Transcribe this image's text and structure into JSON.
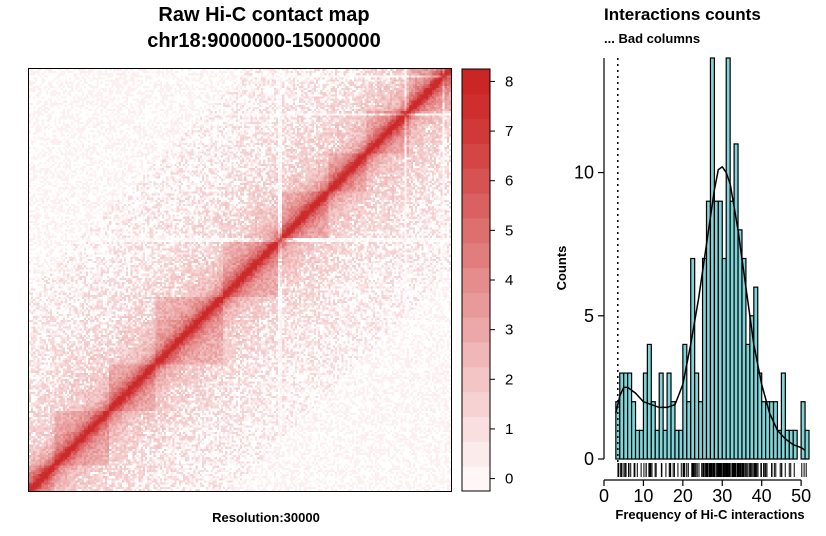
{
  "left_panel": {
    "title_line1": "Raw Hi-C contact map",
    "title_line2": "chr18:9000000-15000000",
    "resolution_label": "Resolution:30000"
  },
  "right_panel": {
    "title": "Interactions counts",
    "subtitle": "... Bad columns",
    "ylabel": "Counts",
    "xlabel": "Frequency of Hi-C interactions"
  },
  "colors": {
    "bar_fill": "#7fd4d8",
    "bar_stroke": "#000000",
    "scale_low": "#fdf0f0",
    "scale_high": "#cc2a2a"
  },
  "chart_data": [
    {
      "type": "heatmap",
      "title": "Raw Hi-C contact map",
      "subtitle": "chr18:9000000-15000000",
      "xlabel": "Resolution:30000",
      "bins": 200,
      "color_scale": {
        "ticks": [
          "0",
          "1",
          "2",
          "3",
          "4",
          "5",
          "6",
          "7",
          "8"
        ],
        "min": 0,
        "max": 8.5,
        "levels": 17,
        "colors": [
          "#fff7f7",
          "#fcebeb",
          "#f9dfdf",
          "#f6d2d2",
          "#f3c5c5",
          "#efb7b7",
          "#eca8a8",
          "#e89a9a",
          "#e58c8c",
          "#e17d7d",
          "#de6f6f",
          "#da6161",
          "#d75353",
          "#d44545",
          "#d13838",
          "#ce2e2e",
          "#cb2626"
        ]
      }
    },
    {
      "type": "bar",
      "title": "Interactions counts",
      "subtitle": "... Bad columns",
      "xlabel": "Frequency of Hi-C interactions",
      "ylabel": "Counts",
      "xlim": [
        0,
        52
      ],
      "ylim": [
        0,
        14
      ],
      "xticks": [
        "0",
        "10",
        "20",
        "30",
        "40",
        "50"
      ],
      "yticks": [
        "0",
        "5",
        "10"
      ],
      "bad_column_threshold": 3.5,
      "bins": [
        {
          "x": 3,
          "count": 2
        },
        {
          "x": 4,
          "count": 3
        },
        {
          "x": 5,
          "count": 3
        },
        {
          "x": 6,
          "count": 3
        },
        {
          "x": 7,
          "count": 2
        },
        {
          "x": 8,
          "count": 1
        },
        {
          "x": 9,
          "count": 1
        },
        {
          "x": 10,
          "count": 3
        },
        {
          "x": 11,
          "count": 4
        },
        {
          "x": 12,
          "count": 2
        },
        {
          "x": 13,
          "count": 1
        },
        {
          "x": 14,
          "count": 3
        },
        {
          "x": 15,
          "count": 1
        },
        {
          "x": 16,
          "count": 3
        },
        {
          "x": 17,
          "count": 2
        },
        {
          "x": 18,
          "count": 1
        },
        {
          "x": 19,
          "count": 1
        },
        {
          "x": 20,
          "count": 4
        },
        {
          "x": 21,
          "count": 2
        },
        {
          "x": 22,
          "count": 7
        },
        {
          "x": 23,
          "count": 3
        },
        {
          "x": 24,
          "count": 2
        },
        {
          "x": 25,
          "count": 7
        },
        {
          "x": 26,
          "count": 9
        },
        {
          "x": 27,
          "count": 14
        },
        {
          "x": 28,
          "count": 9
        },
        {
          "x": 29,
          "count": 9
        },
        {
          "x": 30,
          "count": 7
        },
        {
          "x": 31,
          "count": 14
        },
        {
          "x": 32,
          "count": 9
        },
        {
          "x": 33,
          "count": 11
        },
        {
          "x": 34,
          "count": 8
        },
        {
          "x": 35,
          "count": 7
        },
        {
          "x": 36,
          "count": 4
        },
        {
          "x": 37,
          "count": 5
        },
        {
          "x": 38,
          "count": 6
        },
        {
          "x": 39,
          "count": 3
        },
        {
          "x": 40,
          "count": 2
        },
        {
          "x": 41,
          "count": 2
        },
        {
          "x": 42,
          "count": 2
        },
        {
          "x": 43,
          "count": 2
        },
        {
          "x": 44,
          "count": 1
        },
        {
          "x": 45,
          "count": 3
        },
        {
          "x": 46,
          "count": 1
        },
        {
          "x": 47,
          "count": 1
        },
        {
          "x": 48,
          "count": 1
        },
        {
          "x": 49,
          "count": 0
        },
        {
          "x": 50,
          "count": 2
        },
        {
          "x": 51,
          "count": 1
        }
      ],
      "density": [
        [
          3,
          1.6
        ],
        [
          4,
          2.2
        ],
        [
          5,
          2.5
        ],
        [
          6,
          2.5
        ],
        [
          8,
          2.3
        ],
        [
          10,
          2.0
        ],
        [
          12,
          1.9
        ],
        [
          14,
          1.8
        ],
        [
          16,
          1.8
        ],
        [
          18,
          1.9
        ],
        [
          20,
          2.6
        ],
        [
          22,
          4.0
        ],
        [
          24,
          5.6
        ],
        [
          26,
          7.5
        ],
        [
          28,
          9.4
        ],
        [
          29,
          10.1
        ],
        [
          30,
          10.2
        ],
        [
          31,
          10.0
        ],
        [
          32,
          9.6
        ],
        [
          34,
          8.0
        ],
        [
          36,
          6.0
        ],
        [
          38,
          4.0
        ],
        [
          40,
          2.6
        ],
        [
          42,
          1.6
        ],
        [
          44,
          1.0
        ],
        [
          46,
          0.7
        ],
        [
          48,
          0.5
        ],
        [
          50,
          0.4
        ],
        [
          51,
          0.3
        ]
      ]
    }
  ]
}
